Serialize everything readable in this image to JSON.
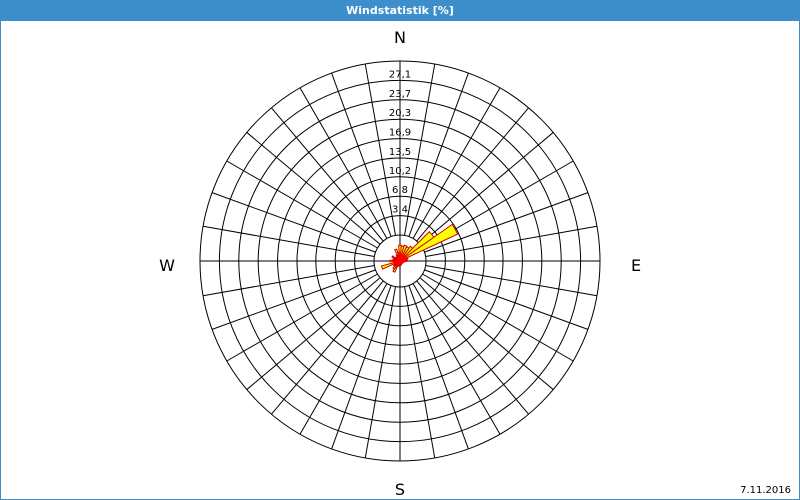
{
  "header": {
    "title": "Windstatistik [%]"
  },
  "footer": {
    "date": "7.11.2016"
  },
  "chart_data": {
    "type": "wind-rose",
    "title": "Windstatistik [%]",
    "unit": "%",
    "rmax": 30.5,
    "ring_labels": [
      "3,4",
      "6,8",
      "10,2",
      "13,5",
      "16,9",
      "20,3",
      "23,7",
      "27,1"
    ],
    "ring_values": [
      3.4,
      6.8,
      10.2,
      13.5,
      16.9,
      20.3,
      23.7,
      27.1
    ],
    "compass": {
      "north": "N",
      "east": "E",
      "south": "S",
      "west": "W"
    },
    "sector_count": 36,
    "sector_width_deg": 10,
    "directions_deg": [
      0,
      10,
      20,
      30,
      40,
      50,
      60,
      70,
      80,
      90,
      100,
      110,
      120,
      130,
      140,
      150,
      160,
      170,
      180,
      190,
      200,
      210,
      220,
      230,
      240,
      250,
      260,
      270,
      280,
      290,
      300,
      310,
      320,
      330,
      340,
      350
    ],
    "values": [
      2.4,
      2.3,
      2.5,
      2.4,
      2.8,
      6.9,
      10.8,
      1.1,
      0.9,
      0.8,
      0.4,
      0.3,
      0.2,
      0.2,
      0.2,
      0.2,
      0.3,
      0.4,
      0.5,
      0.4,
      0.6,
      1.8,
      1.4,
      1.0,
      0.8,
      3.0,
      0.7,
      1.4,
      0.9,
      0.7,
      1.2,
      0.6,
      0.4,
      0.8,
      1.8,
      1.2
    ],
    "inner_values": [
      0.9,
      0.7,
      0.8,
      0.5,
      0.7,
      0.6,
      0.8,
      0.6,
      0.5,
      0.5,
      0.2,
      0.2,
      0.1,
      0.1,
      0.1,
      0.1,
      0.1,
      0.2,
      0.2,
      0.2,
      0.3,
      0.5,
      0.4,
      0.4,
      0.3,
      0.6,
      0.3,
      0.4,
      0.3,
      0.3,
      0.3,
      0.3,
      0.2,
      0.3,
      0.4,
      0.4
    ],
    "colors": {
      "fill": "#ffff00",
      "outline": "#cc0000",
      "inner": "#ff0000",
      "grid": "#000000",
      "header": "#3d8fcb"
    }
  }
}
